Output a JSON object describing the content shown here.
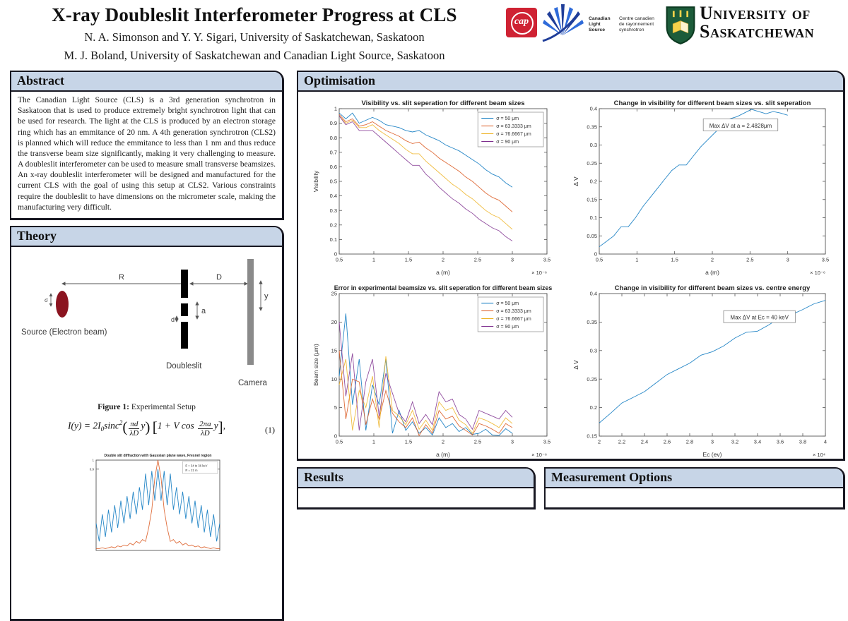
{
  "header": {
    "title": "X-ray Doubleslit Interferometer Progress at CLS",
    "authors_line1": "N. A. Simonson and Y. Y. Sigari, University of Saskatchewan, Saskatoon",
    "authors_line2": "M. J. Boland, University of Saskatchewan and Canadian Light Source, Saskatoon",
    "logos": {
      "cap_label": "cap",
      "cls_en_1": "Canadian",
      "cls_en_2": "Light",
      "cls_en_3": "Source",
      "cls_fr_1": "Centre canadien",
      "cls_fr_2": "de rayonnement",
      "cls_fr_3": "synchrotron",
      "university_line1": "University of",
      "university_line2": "Saskatchewan"
    }
  },
  "abstract": {
    "heading": "Abstract",
    "body": "The Canadian Light Source (CLS) is a 3rd generation synchrotron in Saskatoon that is used to produce extremely bright synchrotron light that can be used for research. The light at the CLS is produced by an electron storage ring which has an emmitance of 20 nm. A 4th generation synchrotron (CLS2) is planned which will reduce the emmitance to less than 1 nm and thus reduce the transverse beam size significantly, making it very challenging to measure. A doubleslit interferometer can be used to measure small transverse beamsizes. An x-ray doubleslit interferometer will be designed and manufactured for the current CLS with the goal of using this setup at CLS2. Various constraints require the doubleslit to have dimensions on the micrometer scale, making the manufacturing very difficult."
  },
  "theory": {
    "heading": "Theory",
    "labels": {
      "R": "R",
      "D": "D",
      "a": "a",
      "d": "d",
      "y": "y",
      "sigma": "σ",
      "source": "Source (Electron beam)",
      "doubleslit": "Doubleslit",
      "camera": "Camera"
    },
    "figure_caption_bold": "Figure 1:",
    "figure_caption_rest": " Experimental Setup",
    "equation": {
      "lhs": "I(y) = 2I",
      "sub0": "0",
      "fn": "sinc",
      "pow": "2",
      "f1n": "πd",
      "f1d": "λD",
      "arg1": "y",
      "inner": "1 + V cos",
      "f2n": "2πa",
      "f2d": "λD",
      "arg2": "y",
      "tail": ",",
      "num": "(1)"
    }
  },
  "optimisation": {
    "heading": "Optimisation"
  },
  "partial_sections": {
    "left": "Results",
    "right": "Measurement Options"
  },
  "colors": {
    "header_bar": "#c7d5e7",
    "panel_border": "#181822",
    "matlab_blue": "#0072BD",
    "matlab_orange": "#D95319",
    "matlab_yellow": "#EDB120",
    "matlab_purple": "#7E2F8E",
    "source_red": "#8b1420",
    "camera_gray": "#8a8a8a"
  },
  "chart_data": [
    {
      "name": "visibility-vs-slit-separation",
      "type": "line",
      "title": "Visibility vs. slit seperation for different beam sizes",
      "xlabel": "a (m)",
      "ylabel": "Visibility",
      "x_multiplier": "× 10⁻⁶",
      "xlim": [
        0.5,
        3.5
      ],
      "ylim": [
        0,
        1
      ],
      "xticks": [
        0.5,
        1,
        1.5,
        2,
        2.5,
        3,
        3.5
      ],
      "yticks": [
        0,
        0.1,
        0.2,
        0.3,
        0.4,
        0.5,
        0.6,
        0.7,
        0.8,
        0.9,
        1
      ],
      "legend": true,
      "series": [
        {
          "name": "σ = 50 μm",
          "color": "#0072BD",
          "x0": 0.5,
          "x1": 3.0,
          "y": [
            0.97,
            0.93,
            0.97,
            0.9,
            0.92,
            0.94,
            0.92,
            0.89,
            0.88,
            0.87,
            0.85,
            0.84,
            0.85,
            0.82,
            0.8,
            0.78,
            0.75,
            0.73,
            0.71,
            0.68,
            0.65,
            0.62,
            0.58,
            0.55,
            0.53,
            0.49,
            0.46
          ]
        },
        {
          "name": "σ = 63.3333 μm",
          "color": "#D95319",
          "x0": 0.5,
          "x1": 3.0,
          "y": [
            0.96,
            0.91,
            0.93,
            0.88,
            0.89,
            0.91,
            0.88,
            0.85,
            0.83,
            0.81,
            0.78,
            0.76,
            0.77,
            0.73,
            0.7,
            0.66,
            0.63,
            0.6,
            0.57,
            0.53,
            0.5,
            0.46,
            0.42,
            0.39,
            0.37,
            0.33,
            0.29
          ]
        },
        {
          "name": "σ = 76.6667 μm",
          "color": "#EDB120",
          "x0": 0.5,
          "x1": 3.0,
          "y": [
            0.95,
            0.9,
            0.92,
            0.87,
            0.87,
            0.89,
            0.85,
            0.82,
            0.79,
            0.76,
            0.72,
            0.69,
            0.69,
            0.64,
            0.6,
            0.56,
            0.52,
            0.48,
            0.45,
            0.41,
            0.38,
            0.34,
            0.3,
            0.27,
            0.25,
            0.21,
            0.17
          ]
        },
        {
          "name": "σ = 90 μm",
          "color": "#7E2F8E",
          "x0": 0.5,
          "x1": 3.0,
          "y": [
            0.95,
            0.89,
            0.91,
            0.85,
            0.85,
            0.85,
            0.81,
            0.77,
            0.73,
            0.69,
            0.65,
            0.61,
            0.61,
            0.55,
            0.51,
            0.46,
            0.42,
            0.38,
            0.35,
            0.31,
            0.28,
            0.24,
            0.21,
            0.18,
            0.16,
            0.12,
            0.09
          ]
        }
      ]
    },
    {
      "name": "delta-v-vs-slit-separation",
      "type": "line",
      "title": "Change in visibility for different beam sizes vs. slit seperation",
      "xlabel": "a (m)",
      "ylabel": "Δ V",
      "x_multiplier": "× 10⁻⁶",
      "xlim": [
        0.5,
        3.5
      ],
      "ylim": [
        0,
        0.4
      ],
      "xticks": [
        0.5,
        1,
        1.5,
        2,
        2.5,
        3,
        3.5
      ],
      "yticks": [
        0,
        0.05,
        0.1,
        0.15,
        0.2,
        0.25,
        0.3,
        0.35,
        0.4
      ],
      "annotation": {
        "text": "Max ΔV at a = 2.4828μm",
        "x": 0.46,
        "y": 0.07
      },
      "series": [
        {
          "name": "ΔV",
          "color": "#0072BD",
          "x0": 0.5,
          "x1": 3.0,
          "y": [
            0.02,
            0.035,
            0.05,
            0.075,
            0.075,
            0.1,
            0.13,
            0.155,
            0.18,
            0.205,
            0.23,
            0.245,
            0.245,
            0.27,
            0.295,
            0.315,
            0.335,
            0.355,
            0.372,
            0.378,
            0.388,
            0.398,
            0.392,
            0.386,
            0.392,
            0.388,
            0.382
          ]
        }
      ]
    },
    {
      "name": "beamsize-error-vs-slit-separation",
      "type": "line",
      "title": "Error in experimental beamsize vs. slit seperation for different beam sizes",
      "xlabel": "a (m)",
      "ylabel": "Beam size (μm)",
      "x_multiplier": "× 10⁻⁶",
      "xlim": [
        0.5,
        3.5
      ],
      "ylim": [
        0,
        25
      ],
      "xticks": [
        0.5,
        1,
        1.5,
        2,
        2.5,
        3,
        3.5
      ],
      "yticks": [
        0,
        5,
        10,
        15,
        20,
        25
      ],
      "legend": true,
      "series": [
        {
          "name": "σ = 50 μm",
          "color": "#0072BD",
          "x0": 0.5,
          "x1": 3.0,
          "y": [
            10.5,
            21.5,
            5.5,
            13.5,
            1,
            9,
            5.5,
            13.5,
            0.5,
            4.5,
            1,
            2.5,
            0.5,
            1.5,
            0.2,
            3.2,
            1.5,
            2.2,
            0.8,
            1.5,
            0.3,
            0.5,
            1.2,
            0.2,
            0.1,
            1.3,
            0.5
          ]
        },
        {
          "name": "σ = 63.3333 μm",
          "color": "#D95319",
          "x0": 0.5,
          "x1": 3.0,
          "y": [
            15,
            3,
            10,
            9.5,
            2,
            6.5,
            3,
            8,
            4,
            2.5,
            1.5,
            3.2,
            0.1,
            2,
            0.5,
            4.5,
            3,
            3.5,
            1.8,
            1,
            0.2,
            2.2,
            1.8,
            1.2,
            0.5,
            2.2,
            1.5
          ]
        },
        {
          "name": "σ = 76.6667 μm",
          "color": "#EDB120",
          "x0": 0.5,
          "x1": 3.0,
          "y": [
            9,
            13.5,
            1,
            8,
            5,
            10.5,
            1.5,
            14,
            4.5,
            3.5,
            2,
            4.5,
            1.2,
            2.8,
            1,
            6,
            4.5,
            5,
            2.8,
            2,
            0.5,
            3.2,
            2.8,
            2.2,
            1.5,
            3.2,
            2.2
          ]
        },
        {
          "name": "σ = 90 μm",
          "color": "#7E2F8E",
          "x0": 0.5,
          "x1": 3.0,
          "y": [
            20,
            7,
            14.5,
            1,
            9.5,
            13.5,
            3.5,
            11,
            7.5,
            4,
            2.5,
            6,
            2.2,
            3.8,
            2,
            7.8,
            6,
            6.5,
            3.8,
            3,
            1.2,
            4.5,
            4,
            3.5,
            3,
            4.5,
            3.3
          ]
        }
      ]
    },
    {
      "name": "delta-v-vs-centre-energy",
      "type": "line",
      "title": "Change in visibility for different beam sizes vs. centre energy",
      "xlabel": "Ec (ev)",
      "ylabel": "Δ V",
      "x_multiplier": "× 10⁴",
      "xlim": [
        2,
        4
      ],
      "ylim": [
        0.15,
        0.4
      ],
      "xticks": [
        2,
        2.2,
        2.4,
        2.6,
        2.8,
        3,
        3.2,
        3.4,
        3.6,
        3.8,
        4
      ],
      "yticks": [
        0.15,
        0.2,
        0.25,
        0.3,
        0.35,
        0.4
      ],
      "annotation": {
        "text": "Max ΔV at Ec = 40 keV",
        "x": 0.55,
        "y": 0.12
      },
      "series": [
        {
          "name": "ΔV",
          "color": "#0072BD",
          "x0": 2,
          "x1": 4,
          "y": [
            0.173,
            0.19,
            0.208,
            0.218,
            0.228,
            0.243,
            0.258,
            0.268,
            0.278,
            0.292,
            0.298,
            0.308,
            0.322,
            0.332,
            0.334,
            0.345,
            0.358,
            0.363,
            0.372,
            0.382,
            0.388
          ]
        }
      ]
    },
    {
      "name": "fresnel-diffraction-mini",
      "type": "line",
      "mini": true,
      "title": "Double slit diffraction with Gaussian plane wave, Fresnel region",
      "xlabel": "",
      "ylabel": "",
      "x_multiplier": "",
      "xlim": [
        0,
        1
      ],
      "ylim": [
        0,
        1
      ],
      "xticks": [],
      "yticks": [
        0.9,
        1
      ],
      "legend_lines": [
        "E = 34 to 36 keV",
        "R = 21 m"
      ],
      "series": [
        {
          "name": "envelope",
          "color": "#0072BD",
          "x0": 0,
          "x1": 1,
          "y": [
            0.3,
            0.1,
            0.4,
            0.15,
            0.45,
            0.2,
            0.5,
            0.25,
            0.55,
            0.3,
            0.6,
            0.35,
            0.65,
            0.4,
            0.7,
            0.45,
            0.85,
            0.5,
            0.88,
            0.55,
            0.9,
            0.55,
            0.88,
            0.5,
            0.85,
            0.45,
            0.7,
            0.4,
            0.65,
            0.35,
            0.6,
            0.3,
            0.55,
            0.25,
            0.5,
            0.2,
            0.45,
            0.15,
            0.4,
            0.1,
            0.3
          ]
        },
        {
          "name": "central-peak",
          "color": "#D95319",
          "x0": 0,
          "x1": 1,
          "y": [
            0.02,
            0.02,
            0.03,
            0.02,
            0.03,
            0.04,
            0.03,
            0.05,
            0.04,
            0.06,
            0.05,
            0.08,
            0.06,
            0.1,
            0.08,
            0.12,
            0.1,
            0.25,
            0.45,
            0.8,
            1.0,
            0.8,
            0.45,
            0.25,
            0.1,
            0.12,
            0.08,
            0.1,
            0.06,
            0.08,
            0.05,
            0.06,
            0.04,
            0.05,
            0.03,
            0.04,
            0.03,
            0.02,
            0.03,
            0.02,
            0.02
          ]
        }
      ]
    }
  ]
}
